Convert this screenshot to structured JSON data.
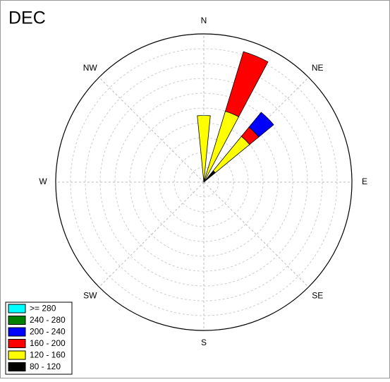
{
  "chart_data": {
    "type": "windrose",
    "title": "DEC",
    "directions": [
      0,
      22.5,
      45
    ],
    "rlim": [
      0,
      10
    ],
    "rticks": [
      1,
      2,
      3,
      4,
      5,
      6,
      7,
      8,
      9,
      10
    ],
    "thetaticks": [
      {
        "value": 0,
        "label": "N"
      },
      {
        "value": 45,
        "label": "NE"
      },
      {
        "value": 90,
        "label": "E"
      },
      {
        "value": 135,
        "label": "SE"
      },
      {
        "value": 180,
        "label": "S"
      },
      {
        "value": 225,
        "label": "SW"
      },
      {
        "value": 270,
        "label": "W"
      },
      {
        "value": 315,
        "label": "NW"
      }
    ],
    "series": [
      {
        "name": ">= 280",
        "color": "#00ffff",
        "values": [
          0,
          0,
          0
        ]
      },
      {
        "name": "240 - 280",
        "color": "#008000",
        "values": [
          0,
          0,
          0
        ]
      },
      {
        "name": "200 - 240",
        "color": "#0000ff",
        "values": [
          0,
          0,
          1.3
        ]
      },
      {
        "name": "160 - 200",
        "color": "#ff0000",
        "values": [
          0,
          4.2,
          0.8
        ]
      },
      {
        "name": "120 - 160",
        "color": "#ffff00",
        "values": [
          4.5,
          5.0,
          3.0
        ]
      },
      {
        "name": "80 - 120",
        "color": "#000000",
        "values": [
          0,
          0,
          1.0
        ]
      }
    ],
    "legend": "lower left"
  }
}
